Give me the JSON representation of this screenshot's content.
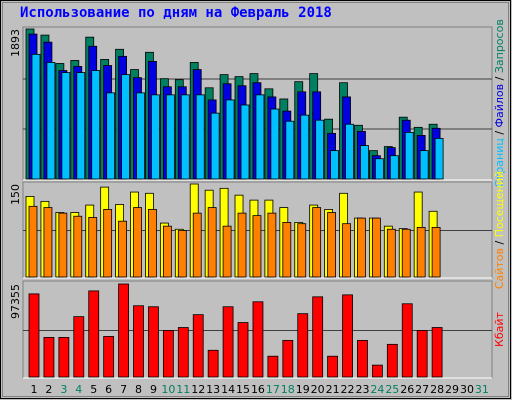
{
  "chart_data": [
    {
      "type": "bar",
      "title": "Использование по дням на Февраль 2018",
      "ylim": [
        0,
        1893
      ],
      "yticks": [
        1893
      ],
      "legend_separator": "/",
      "series": [
        {
          "name": "Запросов",
          "color": "#008060",
          "values": [
            1893,
            1816,
            1458,
            1496,
            1790,
            1509,
            1637,
            1381,
            1599,
            1266,
            1253,
            1471,
            1151,
            1317,
            1292,
            1330,
            1138,
            1010,
            1228,
            1330,
            755,
            1215,
            678,
            358,
            409,
            780,
            652,
            691,
            null,
            null,
            null
          ]
        },
        {
          "name": "Файлов",
          "color": "#0000e0",
          "values": [
            1829,
            1727,
            1369,
            1420,
            1675,
            1432,
            1548,
            1279,
            1484,
            1164,
            1164,
            1381,
            998,
            1202,
            1177,
            1215,
            1036,
            857,
            1100,
            1100,
            576,
            1036,
            601,
            294,
            396,
            742,
            550,
            640,
            null,
            null,
            null
          ]
        },
        {
          "name": "Страниц",
          "color": "#00c0ff",
          "values": [
            1573,
            1471,
            1343,
            1343,
            1369,
            1087,
            1317,
            1087,
            1062,
            1062,
            1062,
            1062,
            831,
            998,
            934,
            1062,
            883,
            729,
            806,
            742,
            358,
            691,
            422,
            256,
            294,
            588,
            358,
            512,
            null,
            null,
            null
          ]
        }
      ]
    },
    {
      "type": "bar",
      "ylim": [
        0,
        150
      ],
      "yticks": [
        150
      ],
      "legend_separator": "/",
      "series": [
        {
          "name": "Посещений",
          "color": "#ffff00",
          "values": [
            130,
            122,
            104,
            104,
            116,
            145,
            117,
            137,
            135,
            87,
            77,
            150,
            140,
            143,
            132,
            124,
            124,
            112,
            88,
            116,
            109,
            135,
            95,
            95,
            82,
            78,
            137,
            106,
            null,
            null,
            null
          ]
        },
        {
          "name": "Сайтов",
          "color": "#ff8000",
          "values": [
            114,
            112,
            103,
            98,
            96,
            109,
            90,
            112,
            109,
            82,
            75,
            103,
            112,
            82,
            103,
            99,
            103,
            88,
            86,
            112,
            104,
            86,
            95,
            95,
            77,
            77,
            80,
            80,
            null,
            null,
            null
          ]
        }
      ]
    },
    {
      "type": "bar",
      "ylim": [
        0,
        97355
      ],
      "yticks": [
        97355
      ],
      "categories": [
        "1",
        "2",
        "3",
        "4",
        "5",
        "6",
        "7",
        "8",
        "9",
        "10",
        "11",
        "12",
        "13",
        "14",
        "15",
        "16",
        "17",
        "18",
        "19",
        "20",
        "21",
        "22",
        "23",
        "24",
        "25",
        "26",
        "27",
        "28",
        "29",
        "30",
        "31"
      ],
      "category_colors": [
        "#000000",
        "#000000",
        "#008060",
        "#008060",
        "#000000",
        "#000000",
        "#000000",
        "#000000",
        "#000000",
        "#008060",
        "#008060",
        "#000000",
        "#000000",
        "#000000",
        "#000000",
        "#000000",
        "#008060",
        "#008060",
        "#000000",
        "#000000",
        "#000000",
        "#000000",
        "#000000",
        "#008060",
        "#008060",
        "#000000",
        "#000000",
        "#000000",
        "#000000",
        "#000000",
        "#008060"
      ],
      "series": [
        {
          "name": "Кбайт",
          "color": "#ff0000",
          "values": [
            87010,
            41440,
            41440,
            63190,
            90130,
            42480,
            97355,
            74590,
            73550,
            48690,
            51800,
            65270,
            27970,
            73550,
            56980,
            78740,
            21760,
            38330,
            66300,
            83920,
            21760,
            85990,
            38330,
            12430,
            34190,
            76660,
            48690,
            51800,
            null,
            null,
            null
          ]
        }
      ]
    }
  ]
}
